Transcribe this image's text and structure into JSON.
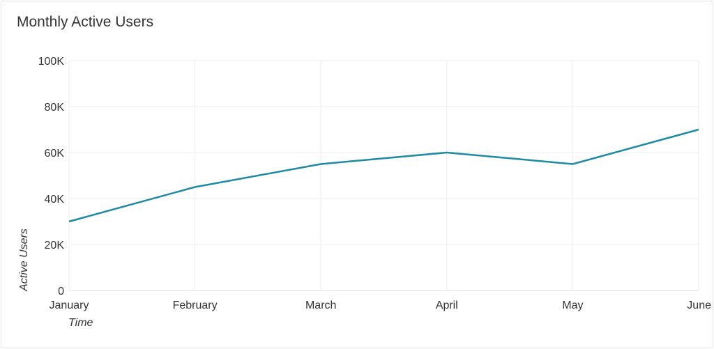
{
  "chart_data": {
    "type": "line",
    "title": "Monthly Active Users",
    "xlabel": "Time",
    "ylabel": "Active Users",
    "categories": [
      "January",
      "February",
      "March",
      "April",
      "May",
      "June"
    ],
    "series": [
      {
        "values": [
          30000,
          45000,
          55000,
          60000,
          55000,
          70000
        ],
        "color": "#1f8aa5"
      }
    ],
    "ylim": [
      0,
      100000
    ],
    "yticks": [
      0,
      20000,
      40000,
      60000,
      80000,
      100000
    ],
    "ytick_labels": [
      "0",
      "20K",
      "40K",
      "60K",
      "80K",
      "100K"
    ],
    "grid": true,
    "legend": "none"
  }
}
